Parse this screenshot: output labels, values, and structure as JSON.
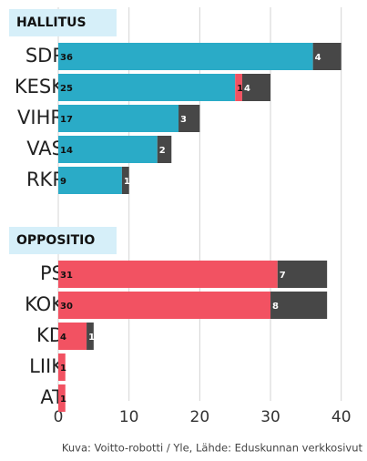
{
  "chart_data": {
    "type": "bar",
    "orientation": "horizontal",
    "groups": [
      {
        "label": "HALLITUS",
        "categories": [
          "SDP",
          "KESK",
          "VIHR",
          "VAS",
          "RKP"
        ],
        "series": [
          {
            "color": "#2aabc7",
            "values": [
              36,
              25,
              17,
              14,
              9
            ]
          },
          {
            "color": "#f25262",
            "values": [
              null,
              1,
              null,
              null,
              null
            ]
          },
          {
            "color": "#474747",
            "values": [
              4,
              4,
              3,
              2,
              1
            ]
          }
        ]
      },
      {
        "label": "OPPOSITIO",
        "categories": [
          "PS",
          "KOK",
          "KD",
          "LIIK",
          "AT"
        ],
        "series": [
          {
            "color": "#f25262",
            "values": [
              31,
              30,
              4,
              1,
              1
            ]
          },
          {
            "color": "#474747",
            "values": [
              7,
              8,
              1,
              null,
              null
            ]
          }
        ]
      }
    ],
    "xlim": [
      0,
      43
    ],
    "xticks": [
      0,
      10,
      20,
      30,
      40
    ],
    "grid": true,
    "caption": "Kuva: Voitto-robotti / Yle, Lähde: Eduskunnan verkkosivut"
  }
}
